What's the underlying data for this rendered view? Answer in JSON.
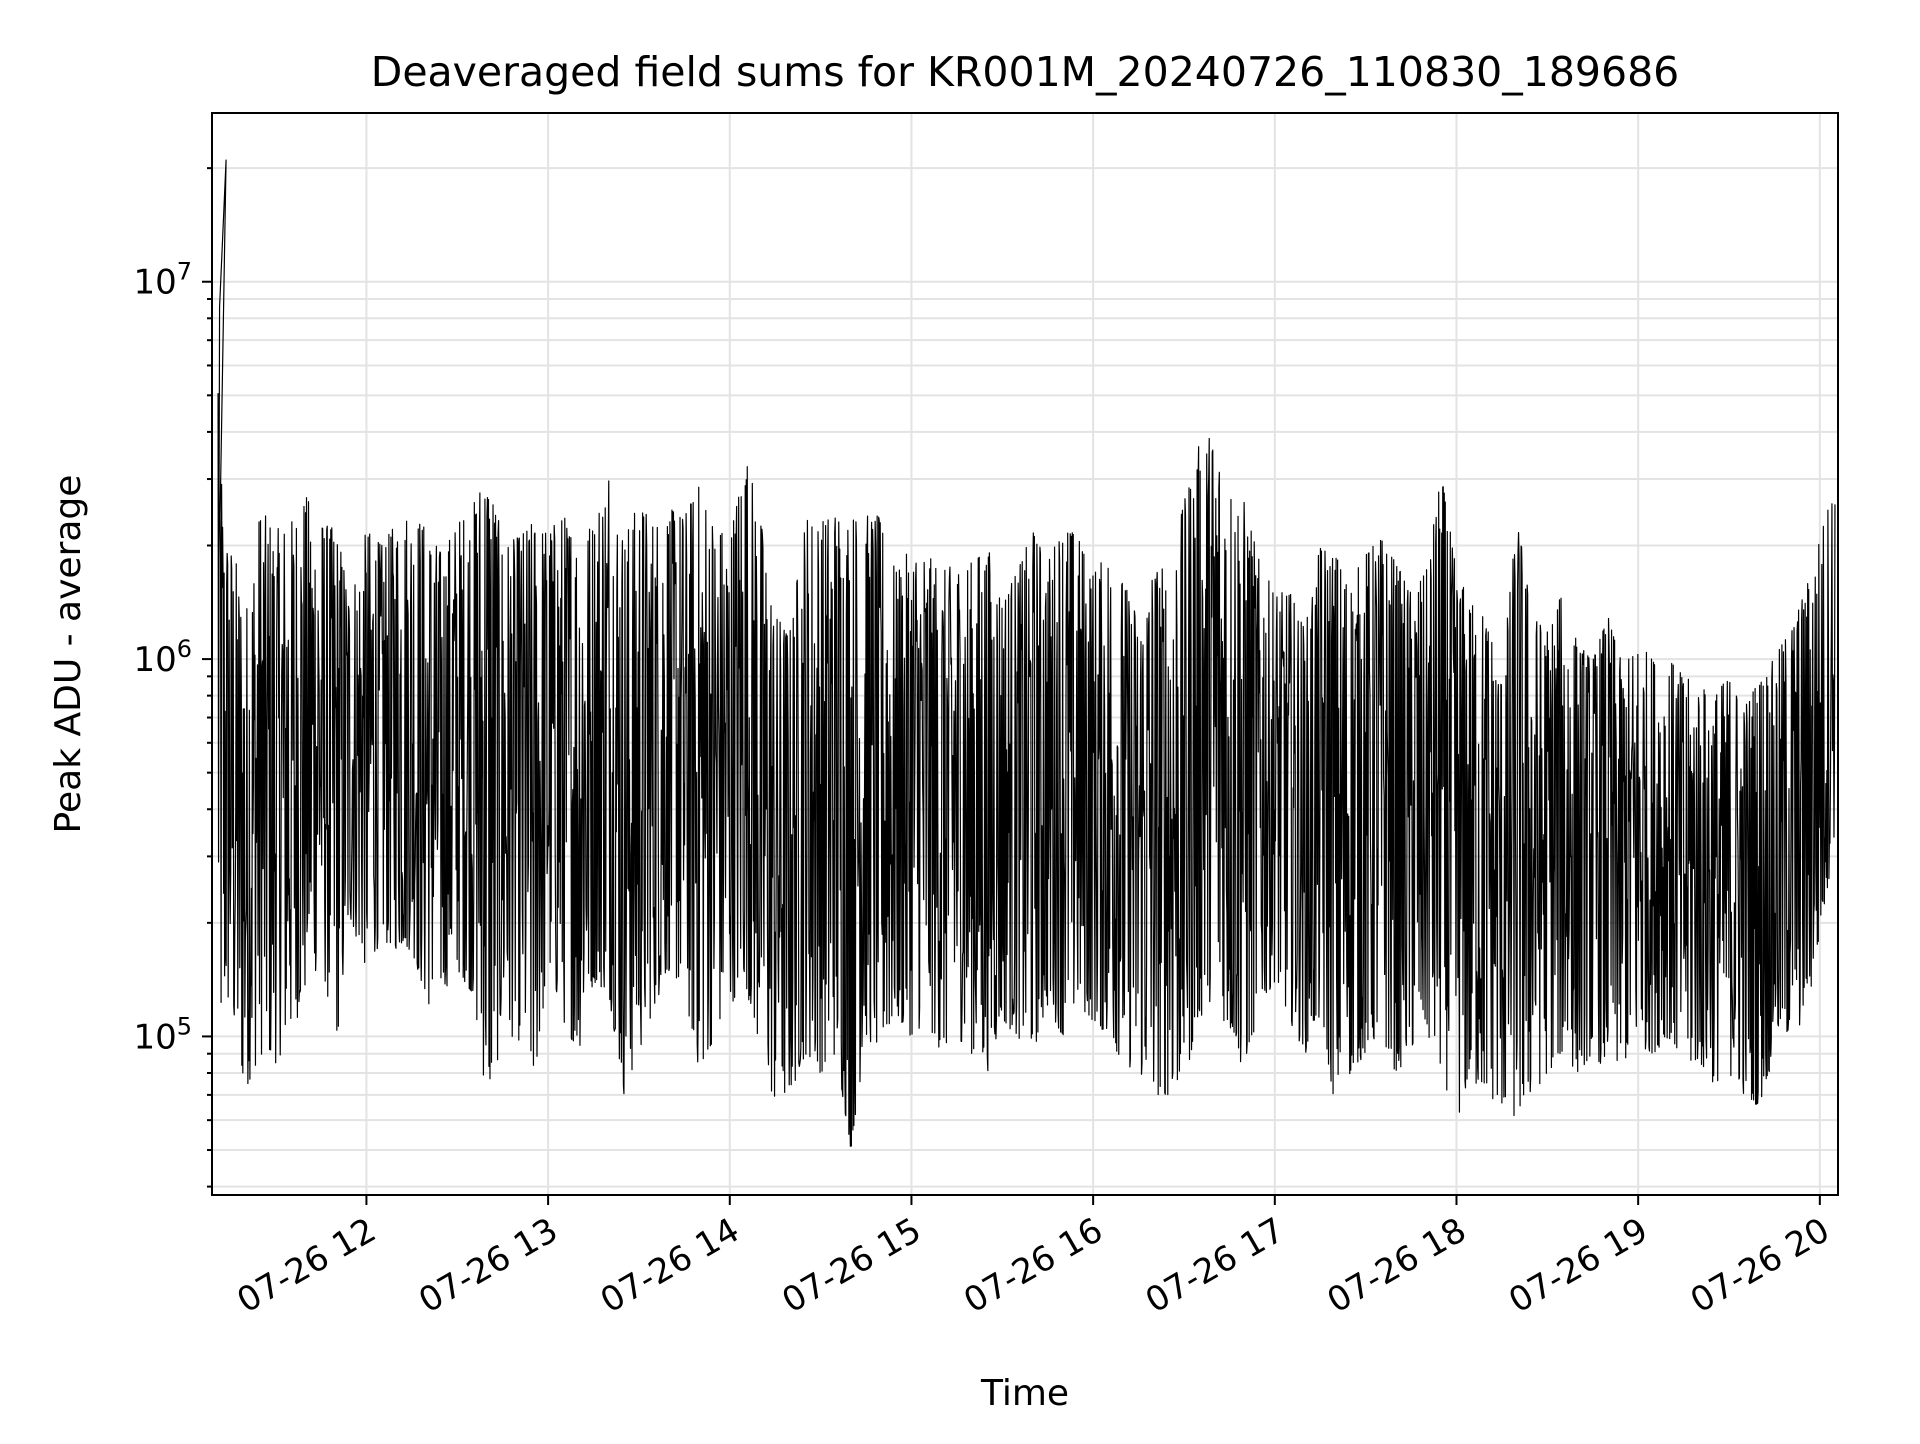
{
  "chart_data": {
    "type": "line",
    "title": "Deaveraged field sums for KR001M_20240726_110830_189686",
    "xlabel": "Time",
    "ylabel": "Peak ADU - average",
    "xlim": [
      "2024-07-26T11:09:00",
      "2024-07-26T20:06:00"
    ],
    "ylim": [
      38000,
      28000000
    ],
    "yscale": "log",
    "grid": "on (major and minor)",
    "x_ticks": [
      {
        "value": "2024-07-26T12:00:00",
        "label": "07-26 12"
      },
      {
        "value": "2024-07-26T13:00:00",
        "label": "07-26 13"
      },
      {
        "value": "2024-07-26T14:00:00",
        "label": "07-26 14"
      },
      {
        "value": "2024-07-26T15:00:00",
        "label": "07-26 15"
      },
      {
        "value": "2024-07-26T16:00:00",
        "label": "07-26 16"
      },
      {
        "value": "2024-07-26T17:00:00",
        "label": "07-26 17"
      },
      {
        "value": "2024-07-26T18:00:00",
        "label": "07-26 18"
      },
      {
        "value": "2024-07-26T19:00:00",
        "label": "07-26 19"
      },
      {
        "value": "2024-07-26T20:00:00",
        "label": "07-26 20"
      }
    ],
    "y_ticks": [
      {
        "value": 100000,
        "base": "10",
        "exp": "5"
      },
      {
        "value": 1000000,
        "base": "10",
        "exp": "6"
      },
      {
        "value": 10000000,
        "base": "10",
        "exp": "7"
      }
    ],
    "line_color": "#000000",
    "series": [
      {
        "x": [
          "2024-07-26T11:11:00",
          "2024-07-26T11:12:00",
          "2024-07-26T11:13:00",
          "2024-07-26T11:15:00",
          "2024-07-26T11:17:00",
          "2024-07-26T11:20:00",
          "2024-07-26T11:25:00",
          "2024-07-26T11:30:00",
          "2024-07-26T11:35:00",
          "2024-07-26T11:40:00",
          "2024-07-26T11:45:00",
          "2024-07-26T11:50:00",
          "2024-07-26T11:55:00",
          "2024-07-26T12:00:00",
          "2024-07-26T12:05:00",
          "2024-07-26T12:10:00",
          "2024-07-26T12:15:00",
          "2024-07-26T12:20:00",
          "2024-07-26T12:25:00",
          "2024-07-26T12:30:00",
          "2024-07-26T12:35:00",
          "2024-07-26T12:40:00",
          "2024-07-26T12:45:00",
          "2024-07-26T12:50:00",
          "2024-07-26T12:55:00",
          "2024-07-26T13:00:00",
          "2024-07-26T13:05:00",
          "2024-07-26T13:10:00",
          "2024-07-26T13:15:00",
          "2024-07-26T13:20:00",
          "2024-07-26T13:25:00",
          "2024-07-26T13:30:00",
          "2024-07-26T13:35:00",
          "2024-07-26T13:40:00",
          "2024-07-26T13:45:00",
          "2024-07-26T13:50:00",
          "2024-07-26T13:55:00",
          "2024-07-26T14:00:00",
          "2024-07-26T14:05:00",
          "2024-07-26T14:10:00",
          "2024-07-26T14:15:00",
          "2024-07-26T14:20:00",
          "2024-07-26T14:25:00",
          "2024-07-26T14:30:00",
          "2024-07-26T14:35:00",
          "2024-07-26T14:40:00",
          "2024-07-26T14:45:00",
          "2024-07-26T14:49:00",
          "2024-07-26T14:55:00",
          "2024-07-26T15:00:00",
          "2024-07-26T15:05:00",
          "2024-07-26T15:10:00",
          "2024-07-26T15:15:00",
          "2024-07-26T15:20:00",
          "2024-07-26T15:25:00",
          "2024-07-26T15:30:00",
          "2024-07-26T15:35:00",
          "2024-07-26T15:40:00",
          "2024-07-26T15:45:00",
          "2024-07-26T15:50:00",
          "2024-07-26T15:55:00",
          "2024-07-26T16:00:00",
          "2024-07-26T16:05:00",
          "2024-07-26T16:10:00",
          "2024-07-26T16:15:00",
          "2024-07-26T16:20:00",
          "2024-07-26T16:25:00",
          "2024-07-26T16:30:00",
          "2024-07-26T16:35:00",
          "2024-07-26T16:40:00",
          "2024-07-26T16:45:00",
          "2024-07-26T16:50:00",
          "2024-07-26T16:55:00",
          "2024-07-26T17:00:00",
          "2024-07-26T17:05:00",
          "2024-07-26T17:10:00",
          "2024-07-26T17:15:00",
          "2024-07-26T17:20:00",
          "2024-07-26T17:25:00",
          "2024-07-26T17:30:00",
          "2024-07-26T17:35:00",
          "2024-07-26T17:40:00",
          "2024-07-26T17:45:00",
          "2024-07-26T17:50:00",
          "2024-07-26T17:55:00",
          "2024-07-26T18:00:00",
          "2024-07-26T18:05:00",
          "2024-07-26T18:10:00",
          "2024-07-26T18:15:00",
          "2024-07-26T18:20:00",
          "2024-07-26T18:25:00",
          "2024-07-26T18:30:00",
          "2024-07-26T18:35:00",
          "2024-07-26T18:40:00",
          "2024-07-26T18:45:00",
          "2024-07-26T18:50:00",
          "2024-07-26T18:55:00",
          "2024-07-26T19:00:00",
          "2024-07-26T19:05:00",
          "2024-07-26T19:10:00",
          "2024-07-26T19:15:00",
          "2024-07-26T19:20:00",
          "2024-07-26T19:25:00",
          "2024-07-26T19:30:00",
          "2024-07-26T19:35:00",
          "2024-07-26T19:40:00",
          "2024-07-26T19:45:00",
          "2024-07-26T19:50:00",
          "2024-07-26T19:55:00",
          "2024-07-26T20:00:00",
          "2024-07-26T20:05:00"
        ],
        "low": [
          100000,
          95000,
          110000,
          120000,
          85000,
          72000,
          90000,
          85000,
          100000,
          130000,
          160000,
          95000,
          200000,
          150000,
          180000,
          170000,
          170000,
          120000,
          130000,
          150000,
          130000,
          65000,
          100000,
          100000,
          70000,
          150000,
          110000,
          90000,
          140000,
          130000,
          70000,
          90000,
          120000,
          150000,
          130000,
          80000,
          100000,
          120000,
          140000,
          90000,
          65000,
          70000,
          90000,
          80000,
          90000,
          50000,
          100000,
          90000,
          110000,
          100000,
          110000,
          90000,
          100000,
          90000,
          80000,
          110000,
          100000,
          90000,
          120000,
          100000,
          120000,
          110000,
          100000,
          85000,
          80000,
          70000,
          70000,
          75000,
          110000,
          130000,
          100000,
          80000,
          120000,
          140000,
          110000,
          90000,
          110000,
          65000,
          80000,
          90000,
          100000,
          80000,
          90000,
          100000,
          80000,
          60000,
          75000,
          70000,
          65000,
          60000,
          70000,
          80000,
          90000,
          80000,
          90000,
          80000,
          85000,
          95000,
          90000,
          100000,
          80000,
          85000,
          75000,
          80000,
          70000,
          65000,
          90000,
          100000,
          110000,
          170000,
          350000
        ],
        "high": [
          21000000,
          3500000,
          2300000,
          2000000,
          1800000,
          1300000,
          2500000,
          2200000,
          2300000,
          2700000,
          2300000,
          2200000,
          1500000,
          2200000,
          2000000,
          2300000,
          2500000,
          2200000,
          1900000,
          2300000,
          2500000,
          3500000,
          2000000,
          2100000,
          2300000,
          2200000,
          2400000,
          2200000,
          2300000,
          3300000,
          2100000,
          2600000,
          2300000,
          2500000,
          2400000,
          2900000,
          2300000,
          2100000,
          3600000,
          2400000,
          1300000,
          1200000,
          2400000,
          2300000,
          2500000,
          2400000,
          2400000,
          2400000,
          1700000,
          2000000,
          1900000,
          1700000,
          1800000,
          1800000,
          2000000,
          1500000,
          1700000,
          2200000,
          1800000,
          2300000,
          2100000,
          1700000,
          1900000,
          1600000,
          1300000,
          1800000,
          1700000,
          2600000,
          3700000,
          4000000,
          2900000,
          2600000,
          1800000,
          1500000,
          1500000,
          1200000,
          2000000,
          1900000,
          1600000,
          1900000,
          2100000,
          1800000,
          1500000,
          1700000,
          3100000,
          1700000,
          1400000,
          1300000,
          900000,
          2400000,
          1300000,
          1200000,
          1500000,
          1100000,
          1000000,
          1300000,
          950000,
          1100000,
          1000000,
          1000000,
          900000,
          850000,
          800000,
          900000,
          750000,
          900000,
          1000000,
          1200000,
          1500000,
          2100000,
          3000000
        ]
      }
    ]
  }
}
